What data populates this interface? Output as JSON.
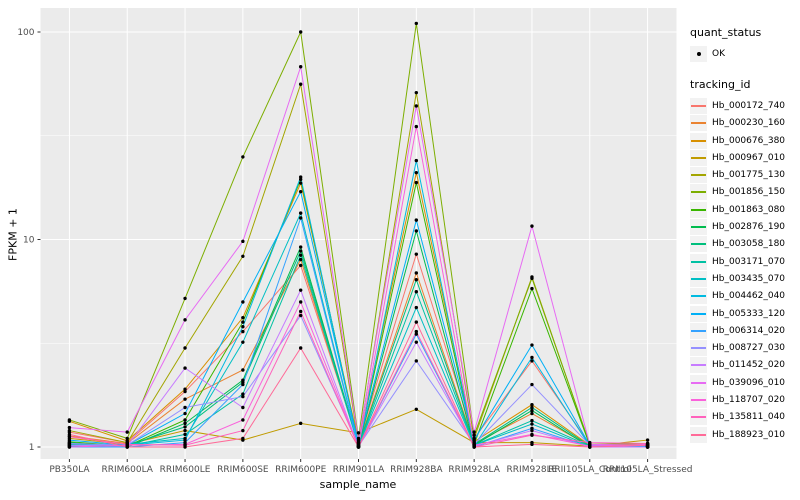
{
  "figure": {
    "background": "#FFFFFF",
    "panel_background": "#EBEBEB",
    "grid_color": "#FFFFFF",
    "tick_color": "#333333",
    "tick_label_color": "#4D4D4D",
    "point_color": "#000000"
  },
  "axes": {
    "x_title": "sample_name",
    "y_title": "FPKM + 1",
    "y_tick_labels": [
      "1",
      "10",
      "100"
    ],
    "y_tick_values": [
      1,
      10,
      100
    ],
    "y_scale": "log10"
  },
  "legend": {
    "quant_title": "quant_status",
    "quant_items": [
      {
        "label": "OK",
        "shape": "point"
      }
    ],
    "tracking_title": "tracking_id"
  },
  "chart_data": {
    "type": "line",
    "title": "",
    "xlabel": "sample_name",
    "ylabel": "FPKM + 1",
    "y_scale": "log10",
    "ylim": [
      0.87,
      130
    ],
    "grid": true,
    "legend_position": "right",
    "point_marker": "filled-circle-black",
    "categories": [
      "PB350LA",
      "RRIM600LA",
      "RRIM600LE",
      "RRIM600SE",
      "RRIM600PE",
      "RRIM901LA",
      "RRIM928BA",
      "RRIM928LA",
      "RRIM928LE",
      "RRII105LA_Control",
      "RRII105LA_Stressed"
    ],
    "series": [
      {
        "name": "Hb_000172_740",
        "color": "#F8766D",
        "values": [
          1.18,
          1.05,
          1.85,
          3.6,
          7.5,
          1.05,
          8.5,
          1.1,
          2.6,
          1.03,
          1.03
        ]
      },
      {
        "name": "Hb_000230_160",
        "color": "#EA8331",
        "values": [
          1.13,
          1.04,
          1.7,
          2.35,
          8.0,
          1.03,
          6.9,
          1.04,
          1.45,
          1.01,
          1.01
        ]
      },
      {
        "name": "Hb_000676_380",
        "color": "#D89000",
        "values": [
          1.33,
          1.07,
          1.9,
          4.2,
          18.7,
          1.06,
          21,
          1.06,
          1.6,
          1.02,
          1.02
        ]
      },
      {
        "name": "Hb_000967_010",
        "color": "#C09B00",
        "values": [
          1.1,
          1.03,
          1.2,
          1.08,
          1.3,
          1.17,
          1.52,
          1.05,
          1.05,
          1.01,
          1.08
        ]
      },
      {
        "name": "Hb_001775_130",
        "color": "#A3A500",
        "values": [
          1.2,
          1.05,
          3.0,
          8.3,
          56,
          1.05,
          51,
          1.1,
          6.6,
          1.02,
          1.03
        ]
      },
      {
        "name": "Hb_001856_150",
        "color": "#7CAE00",
        "values": [
          1.35,
          1.1,
          5.2,
          25,
          100,
          1.1,
          110,
          1.14,
          6.5,
          1.03,
          1.04
        ]
      },
      {
        "name": "Hb_001863_080",
        "color": "#39B600",
        "values": [
          1.06,
          1.01,
          1.35,
          4.0,
          19.5,
          1.03,
          18.8,
          1.03,
          5.8,
          1.02,
          1.0
        ]
      },
      {
        "name": "Hb_002876_190",
        "color": "#00BB4E",
        "values": [
          1.05,
          1.0,
          1.3,
          2.1,
          9.2,
          1.02,
          11,
          1.02,
          1.5,
          1.0,
          1.0
        ]
      },
      {
        "name": "Hb_003058_180",
        "color": "#00BF7D",
        "values": [
          1.04,
          1.02,
          1.25,
          2.05,
          8.8,
          1.02,
          6.4,
          1.03,
          1.55,
          1.01,
          1.01
        ]
      },
      {
        "name": "Hb_003171_070",
        "color": "#00C1A3",
        "values": [
          1.03,
          1.01,
          1.15,
          1.8,
          8.4,
          1.01,
          5.6,
          1.02,
          1.34,
          1.01,
          1.0
        ]
      },
      {
        "name": "Hb_003435_070",
        "color": "#00BFC4",
        "values": [
          1.02,
          1.03,
          1.1,
          3.2,
          13.4,
          1.01,
          4.7,
          1.02,
          1.29,
          1.0,
          1.0
        ]
      },
      {
        "name": "Hb_004462_040",
        "color": "#00BAE0",
        "values": [
          1.01,
          1.02,
          1.08,
          3.8,
          20,
          1.01,
          24,
          1.01,
          2.7,
          1.01,
          1.01
        ]
      },
      {
        "name": "Hb_005333_120",
        "color": "#00B0F6",
        "values": [
          1.08,
          1.02,
          1.45,
          5.0,
          17,
          1.04,
          12.4,
          1.08,
          3.1,
          1.02,
          1.01
        ]
      },
      {
        "name": "Hb_006314_020",
        "color": "#35A2FF",
        "values": [
          1.0,
          1.0,
          1.05,
          2.0,
          12.7,
          1.0,
          3.5,
          1.0,
          1.23,
          1.0,
          1.0
        ]
      },
      {
        "name": "Hb_008727_030",
        "color": "#9590FF",
        "values": [
          1.04,
          1.02,
          1.55,
          1.75,
          4.3,
          1.01,
          2.6,
          1.03,
          2.0,
          1.02,
          1.02
        ]
      },
      {
        "name": "Hb_011452_020",
        "color": "#C77CFF",
        "values": [
          1.02,
          1.01,
          2.4,
          1.55,
          5.7,
          1.0,
          3.2,
          1.01,
          1.2,
          1.0,
          1.0
        ]
      },
      {
        "name": "Hb_039096_010",
        "color": "#E76BF3",
        "values": [
          1.24,
          1.18,
          4.1,
          9.8,
          68,
          1.08,
          44,
          1.18,
          11.6,
          1.03,
          1.02
        ]
      },
      {
        "name": "Hb_118707_020",
        "color": "#FA62DB",
        "values": [
          1.0,
          1.02,
          1.03,
          1.35,
          5.0,
          1.0,
          35,
          1.02,
          1.15,
          1.01,
          1.03
        ]
      },
      {
        "name": "Hb_135811_040",
        "color": "#FF62BC",
        "values": [
          1.12,
          1.03,
          1.02,
          1.2,
          4.5,
          1.0,
          3.6,
          1.0,
          1.14,
          1.05,
          1.04
        ]
      },
      {
        "name": "Hb_188923_010",
        "color": "#FF6A98",
        "values": [
          1.15,
          1.0,
          1.0,
          1.1,
          3.0,
          1.0,
          4.0,
          1.0,
          1.03,
          1.0,
          1.02
        ]
      }
    ]
  }
}
